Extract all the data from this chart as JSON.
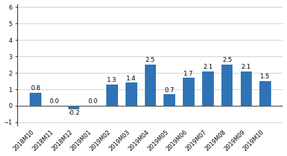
{
  "categories": [
    "2018M10",
    "2018M11",
    "2018M12",
    "2019M01",
    "2019M02",
    "2019M03",
    "2019M04",
    "2019M05",
    "2019M06",
    "2019M07",
    "2019M08",
    "2019M09",
    "2019M10"
  ],
  "values": [
    0.8,
    0.0,
    -0.2,
    0.0,
    1.3,
    1.4,
    2.5,
    0.7,
    1.7,
    2.1,
    2.5,
    2.1,
    1.5
  ],
  "bar_color": "#2e74b5",
  "ylim": [
    -1.2,
    6.2
  ],
  "yticks": [
    -1,
    0,
    1,
    2,
    3,
    4,
    5,
    6
  ],
  "label_fontsize": 6.5,
  "tick_fontsize": 6.0,
  "background_color": "#ffffff",
  "grid_color": "#d0d0d0",
  "zero_line_color": "#555555",
  "left_spine_color": "#333333"
}
